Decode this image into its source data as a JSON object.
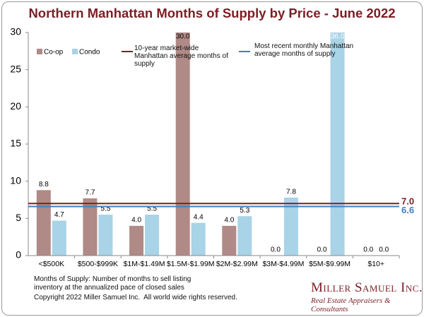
{
  "chart_data": {
    "type": "bar",
    "title": "Northern Manhattan Months of Supply by Price - June 2022",
    "categories": [
      "<$500K",
      "$500-$999K",
      "$1M-$1.49M",
      "$1.5M-$1.99M",
      "$2M-$2.99M",
      "$3M-$4.99M",
      "$5M-$9.99M",
      "$10+"
    ],
    "series": [
      {
        "name": "Co-op",
        "color": "#b08a86",
        "values": [
          8.8,
          7.7,
          4,
          30,
          4,
          0,
          0,
          0
        ],
        "value_labels": [
          "8.8",
          "7.7",
          "4.0",
          "30.0",
          "4.0",
          "0.0",
          "0.0",
          "0.0"
        ]
      },
      {
        "name": "Condo",
        "color": "#a9d3e6",
        "values": [
          4.7,
          5.5,
          5.5,
          4.4,
          5.3,
          7.8,
          36,
          0
        ],
        "value_labels": [
          "4.7",
          "5.5",
          "5.5",
          "4.4",
          "5.3",
          "7.8",
          "36.0",
          "0.0"
        ]
      }
    ],
    "reference_lines": [
      {
        "name": "10-year market-wide Manhattan average months of supply",
        "value": 7,
        "value_label": "7.0",
        "color": "#7b1e24"
      },
      {
        "name": "Most recent monthly Manhattan average months of supply",
        "value": 6.6,
        "color": "#3f7fbf"
      }
    ],
    "ylim": [
      0,
      30
    ],
    "yticks": [
      0,
      5,
      10,
      15,
      20,
      25,
      30
    ],
    "grid": false,
    "notes": [
      "Months of Supply: Number of months to sell listing inventory at the annualized pace of closed sales",
      "Copyright 2022 Miller Samuel Inc.  All world wide rights reserved."
    ],
    "logo": {
      "name": "Miller Samuel Inc.",
      "tagline": "Real Estate Appraisers & Consultants"
    }
  }
}
